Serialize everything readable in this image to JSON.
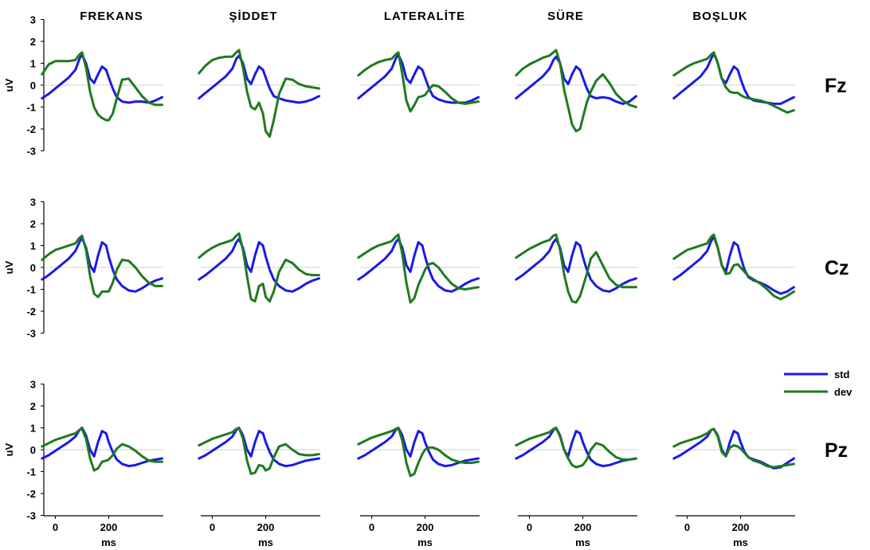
{
  "chart_data": {
    "type": "line",
    "columns": [
      "FREKANS",
      "ŞİDDET",
      "LATERALİTE",
      "SÜRE",
      "BOŞLUK"
    ],
    "rows": [
      "Fz",
      "Cz",
      "Pz"
    ],
    "ylabel": "uV",
    "xlabel": "ms",
    "ylim": [
      -3,
      3
    ],
    "yticks": [
      3,
      2,
      1,
      0,
      -1,
      -2,
      -3
    ],
    "xlim": [
      -50,
      400
    ],
    "xticks": [
      0,
      200
    ],
    "zero_line": true,
    "legend": {
      "position": "right",
      "entries": [
        {
          "name": "std",
          "color": "#1a1ae6"
        },
        {
          "name": "dev",
          "color": "#1f7a1f"
        }
      ]
    },
    "x": [
      -50,
      -25,
      0,
      25,
      50,
      75,
      90,
      100,
      115,
      130,
      145,
      160,
      175,
      190,
      200,
      215,
      230,
      250,
      275,
      300,
      325,
      350,
      375,
      400
    ],
    "series": [
      {
        "name": "std",
        "row": "Fz",
        "column": "FREKANS",
        "values": [
          -0.6,
          -0.4,
          -0.15,
          0.1,
          0.35,
          0.7,
          1.2,
          1.4,
          1.0,
          0.3,
          0.1,
          0.5,
          0.85,
          0.7,
          0.35,
          -0.15,
          -0.55,
          -0.75,
          -0.8,
          -0.75,
          -0.75,
          -0.8,
          -0.7,
          -0.55
        ]
      },
      {
        "name": "dev",
        "row": "Fz",
        "column": "FREKANS",
        "values": [
          0.5,
          0.95,
          1.1,
          1.1,
          1.1,
          1.15,
          1.4,
          1.5,
          0.8,
          -0.3,
          -1.0,
          -1.35,
          -1.5,
          -1.6,
          -1.6,
          -1.3,
          -0.6,
          0.25,
          0.3,
          -0.1,
          -0.5,
          -0.8,
          -0.9,
          -0.9
        ]
      },
      {
        "name": "std",
        "row": "Fz",
        "column": "ŞİDDET",
        "values": [
          -0.6,
          -0.35,
          -0.1,
          0.15,
          0.4,
          0.75,
          1.2,
          1.35,
          1.0,
          0.3,
          0.05,
          0.5,
          0.85,
          0.7,
          0.35,
          -0.15,
          -0.5,
          -0.6,
          -0.7,
          -0.75,
          -0.8,
          -0.75,
          -0.65,
          -0.5
        ]
      },
      {
        "name": "dev",
        "row": "Fz",
        "column": "ŞİDDET",
        "values": [
          0.55,
          0.9,
          1.15,
          1.25,
          1.3,
          1.3,
          1.5,
          1.6,
          0.8,
          -0.3,
          -1.0,
          -1.1,
          -0.8,
          -1.3,
          -2.1,
          -2.35,
          -1.6,
          -0.4,
          0.3,
          0.25,
          0.05,
          -0.05,
          -0.1,
          -0.15
        ]
      },
      {
        "name": "std",
        "row": "Fz",
        "column": "LATERALİTE",
        "values": [
          -0.6,
          -0.35,
          -0.1,
          0.15,
          0.4,
          0.75,
          1.2,
          1.4,
          1.0,
          0.3,
          0.1,
          0.5,
          0.85,
          0.7,
          0.35,
          -0.15,
          -0.5,
          -0.65,
          -0.75,
          -0.8,
          -0.8,
          -0.8,
          -0.7,
          -0.55
        ]
      },
      {
        "name": "dev",
        "row": "Fz",
        "column": "LATERALİTE",
        "values": [
          0.45,
          0.7,
          0.9,
          1.05,
          1.15,
          1.2,
          1.4,
          1.5,
          0.5,
          -0.7,
          -1.2,
          -0.9,
          -0.55,
          -0.5,
          -0.45,
          -0.2,
          0.0,
          -0.05,
          -0.3,
          -0.6,
          -0.8,
          -0.85,
          -0.8,
          -0.75
        ]
      },
      {
        "name": "std",
        "row": "Fz",
        "column": "SÜRE",
        "values": [
          -0.6,
          -0.35,
          -0.1,
          0.15,
          0.4,
          0.75,
          1.15,
          1.3,
          1.0,
          0.3,
          0.05,
          0.5,
          0.85,
          0.7,
          0.35,
          -0.15,
          -0.5,
          -0.6,
          -0.55,
          -0.6,
          -0.75,
          -0.85,
          -0.75,
          -0.5
        ]
      },
      {
        "name": "dev",
        "row": "Fz",
        "column": "SÜRE",
        "values": [
          0.45,
          0.75,
          0.95,
          1.1,
          1.25,
          1.35,
          1.5,
          1.6,
          1.0,
          -0.2,
          -1.0,
          -1.8,
          -2.1,
          -2.0,
          -1.5,
          -0.8,
          -0.3,
          0.2,
          0.5,
          0.1,
          -0.4,
          -0.7,
          -0.9,
          -1.0
        ]
      },
      {
        "name": "std",
        "row": "Fz",
        "column": "BOŞLUK",
        "values": [
          -0.6,
          -0.35,
          -0.1,
          0.15,
          0.4,
          0.8,
          1.2,
          1.45,
          1.0,
          0.3,
          0.1,
          0.5,
          0.85,
          0.7,
          0.3,
          -0.2,
          -0.55,
          -0.7,
          -0.75,
          -0.8,
          -0.85,
          -0.85,
          -0.7,
          -0.55
        ]
      },
      {
        "name": "dev",
        "row": "Fz",
        "column": "BOŞLUK",
        "values": [
          0.45,
          0.65,
          0.85,
          1.0,
          1.1,
          1.2,
          1.4,
          1.5,
          1.0,
          0.3,
          -0.1,
          -0.3,
          -0.35,
          -0.35,
          -0.45,
          -0.55,
          -0.6,
          -0.65,
          -0.7,
          -0.8,
          -0.95,
          -1.1,
          -1.25,
          -1.15
        ]
      },
      {
        "name": "std",
        "row": "Cz",
        "column": "FREKANS",
        "values": [
          -0.55,
          -0.35,
          -0.1,
          0.15,
          0.4,
          0.75,
          1.15,
          1.35,
          0.9,
          0.1,
          -0.2,
          0.55,
          1.15,
          1.0,
          0.5,
          -0.1,
          -0.55,
          -0.85,
          -1.05,
          -1.1,
          -0.95,
          -0.75,
          -0.6,
          -0.5
        ]
      },
      {
        "name": "dev",
        "row": "Cz",
        "column": "FREKANS",
        "values": [
          0.35,
          0.6,
          0.8,
          0.9,
          1.0,
          1.1,
          1.35,
          1.45,
          0.8,
          -0.4,
          -1.2,
          -1.35,
          -1.1,
          -1.1,
          -1.1,
          -0.7,
          -0.1,
          0.35,
          0.3,
          0.0,
          -0.4,
          -0.7,
          -0.85,
          -0.85
        ]
      },
      {
        "name": "std",
        "row": "Cz",
        "column": "ŞİDDET",
        "values": [
          -0.55,
          -0.35,
          -0.1,
          0.15,
          0.4,
          0.75,
          1.15,
          1.3,
          0.9,
          0.1,
          -0.2,
          0.55,
          1.15,
          1.0,
          0.5,
          -0.1,
          -0.55,
          -0.85,
          -1.05,
          -1.1,
          -0.95,
          -0.75,
          -0.6,
          -0.5
        ]
      },
      {
        "name": "dev",
        "row": "Cz",
        "column": "ŞİDDET",
        "values": [
          0.45,
          0.7,
          0.9,
          1.05,
          1.15,
          1.25,
          1.45,
          1.55,
          0.8,
          -0.4,
          -1.45,
          -1.55,
          -0.85,
          -0.75,
          -1.35,
          -1.55,
          -1.1,
          -0.2,
          0.35,
          0.2,
          -0.1,
          -0.3,
          -0.35,
          -0.35
        ]
      },
      {
        "name": "std",
        "row": "Cz",
        "column": "LATERALİTE",
        "values": [
          -0.55,
          -0.35,
          -0.1,
          0.15,
          0.4,
          0.75,
          1.15,
          1.3,
          0.9,
          0.1,
          -0.2,
          0.55,
          1.15,
          1.0,
          0.5,
          -0.1,
          -0.55,
          -0.85,
          -1.05,
          -1.1,
          -0.95,
          -0.75,
          -0.6,
          -0.5
        ]
      },
      {
        "name": "dev",
        "row": "Cz",
        "column": "LATERALİTE",
        "values": [
          0.45,
          0.65,
          0.85,
          1.0,
          1.1,
          1.2,
          1.4,
          1.5,
          0.6,
          -0.7,
          -1.6,
          -1.4,
          -0.8,
          -0.4,
          -0.1,
          0.15,
          0.2,
          0.0,
          -0.4,
          -0.75,
          -0.95,
          -1.0,
          -0.95,
          -0.9
        ]
      },
      {
        "name": "std",
        "row": "Cz",
        "column": "SÜRE",
        "values": [
          -0.55,
          -0.35,
          -0.1,
          0.15,
          0.4,
          0.75,
          1.15,
          1.3,
          0.9,
          0.1,
          -0.2,
          0.55,
          1.15,
          1.0,
          0.5,
          -0.1,
          -0.55,
          -0.85,
          -1.05,
          -1.1,
          -0.95,
          -0.75,
          -0.6,
          -0.5
        ]
      },
      {
        "name": "dev",
        "row": "Cz",
        "column": "SÜRE",
        "values": [
          0.45,
          0.65,
          0.85,
          1.0,
          1.15,
          1.25,
          1.45,
          1.5,
          0.8,
          -0.3,
          -1.1,
          -1.55,
          -1.6,
          -1.3,
          -0.9,
          -0.3,
          0.4,
          0.7,
          0.1,
          -0.5,
          -0.8,
          -0.9,
          -0.9,
          -0.9
        ]
      },
      {
        "name": "std",
        "row": "Cz",
        "column": "BOŞLUK",
        "values": [
          -0.55,
          -0.35,
          -0.1,
          0.15,
          0.4,
          0.75,
          1.2,
          1.4,
          0.9,
          0.1,
          -0.2,
          0.55,
          1.15,
          1.0,
          0.5,
          -0.1,
          -0.45,
          -0.6,
          -0.7,
          -0.85,
          -1.05,
          -1.2,
          -1.1,
          -0.9
        ]
      },
      {
        "name": "dev",
        "row": "Cz",
        "column": "BOŞLUK",
        "values": [
          0.4,
          0.6,
          0.8,
          0.9,
          1.0,
          1.1,
          1.4,
          1.5,
          0.9,
          0.1,
          -0.3,
          -0.25,
          0.1,
          0.15,
          0.0,
          -0.2,
          -0.4,
          -0.55,
          -0.75,
          -1.0,
          -1.3,
          -1.45,
          -1.3,
          -1.1
        ]
      },
      {
        "name": "std",
        "row": "Pz",
        "column": "FREKANS",
        "values": [
          -0.4,
          -0.25,
          -0.05,
          0.15,
          0.35,
          0.6,
          0.9,
          1.0,
          0.65,
          0.0,
          -0.3,
          0.35,
          0.85,
          0.75,
          0.35,
          -0.1,
          -0.45,
          -0.65,
          -0.75,
          -0.7,
          -0.6,
          -0.5,
          -0.45,
          -0.4
        ]
      },
      {
        "name": "dev",
        "row": "Pz",
        "column": "FREKANS",
        "values": [
          0.15,
          0.3,
          0.45,
          0.55,
          0.65,
          0.75,
          0.9,
          0.95,
          0.5,
          -0.4,
          -0.95,
          -0.85,
          -0.55,
          -0.5,
          -0.45,
          -0.25,
          0.05,
          0.25,
          0.15,
          -0.05,
          -0.3,
          -0.5,
          -0.55,
          -0.55
        ]
      },
      {
        "name": "std",
        "row": "Pz",
        "column": "ŞİDDET",
        "values": [
          -0.4,
          -0.25,
          -0.05,
          0.15,
          0.35,
          0.6,
          0.9,
          1.0,
          0.65,
          0.0,
          -0.3,
          0.35,
          0.85,
          0.75,
          0.35,
          -0.1,
          -0.45,
          -0.65,
          -0.75,
          -0.7,
          -0.6,
          -0.5,
          -0.45,
          -0.4
        ]
      },
      {
        "name": "dev",
        "row": "Pz",
        "column": "ŞİDDET",
        "values": [
          0.2,
          0.35,
          0.5,
          0.6,
          0.7,
          0.8,
          0.95,
          1.0,
          0.5,
          -0.5,
          -1.1,
          -1.05,
          -0.7,
          -0.75,
          -0.95,
          -0.85,
          -0.35,
          0.15,
          0.25,
          0.0,
          -0.2,
          -0.25,
          -0.25,
          -0.2
        ]
      },
      {
        "name": "std",
        "row": "Pz",
        "column": "LATERALİTE",
        "values": [
          -0.4,
          -0.25,
          -0.05,
          0.15,
          0.35,
          0.6,
          0.9,
          1.0,
          0.65,
          0.0,
          -0.3,
          0.35,
          0.85,
          0.75,
          0.35,
          -0.1,
          -0.45,
          -0.65,
          -0.75,
          -0.7,
          -0.6,
          -0.5,
          -0.45,
          -0.4
        ]
      },
      {
        "name": "dev",
        "row": "Pz",
        "column": "LATERALİTE",
        "values": [
          0.25,
          0.4,
          0.55,
          0.65,
          0.75,
          0.85,
          0.95,
          1.0,
          0.4,
          -0.6,
          -1.2,
          -1.1,
          -0.6,
          -0.2,
          0.0,
          0.1,
          0.1,
          0.0,
          -0.25,
          -0.45,
          -0.55,
          -0.6,
          -0.6,
          -0.55
        ]
      },
      {
        "name": "std",
        "row": "Pz",
        "column": "SÜRE",
        "values": [
          -0.4,
          -0.25,
          -0.05,
          0.15,
          0.35,
          0.6,
          0.9,
          1.0,
          0.65,
          0.0,
          -0.3,
          0.35,
          0.85,
          0.75,
          0.35,
          -0.1,
          -0.45,
          -0.65,
          -0.75,
          -0.7,
          -0.6,
          -0.5,
          -0.45,
          -0.4
        ]
      },
      {
        "name": "dev",
        "row": "Pz",
        "column": "SÜRE",
        "values": [
          0.2,
          0.35,
          0.5,
          0.6,
          0.7,
          0.8,
          0.95,
          1.0,
          0.6,
          0.0,
          -0.4,
          -0.7,
          -0.8,
          -0.75,
          -0.7,
          -0.45,
          0.0,
          0.3,
          0.2,
          -0.1,
          -0.35,
          -0.45,
          -0.45,
          -0.4
        ]
      },
      {
        "name": "std",
        "row": "Pz",
        "column": "BOŞLUK",
        "values": [
          -0.4,
          -0.25,
          -0.05,
          0.15,
          0.35,
          0.6,
          0.9,
          0.95,
          0.65,
          0.0,
          -0.3,
          0.35,
          0.85,
          0.75,
          0.35,
          -0.1,
          -0.35,
          -0.45,
          -0.55,
          -0.7,
          -0.85,
          -0.8,
          -0.6,
          -0.4
        ]
      },
      {
        "name": "dev",
        "row": "Pz",
        "column": "BOŞLUK",
        "values": [
          0.15,
          0.3,
          0.4,
          0.5,
          0.6,
          0.75,
          0.9,
          0.95,
          0.6,
          -0.1,
          -0.3,
          0.1,
          0.2,
          0.15,
          0.05,
          -0.15,
          -0.35,
          -0.5,
          -0.6,
          -0.75,
          -0.8,
          -0.75,
          -0.7,
          -0.65
        ]
      }
    ]
  }
}
